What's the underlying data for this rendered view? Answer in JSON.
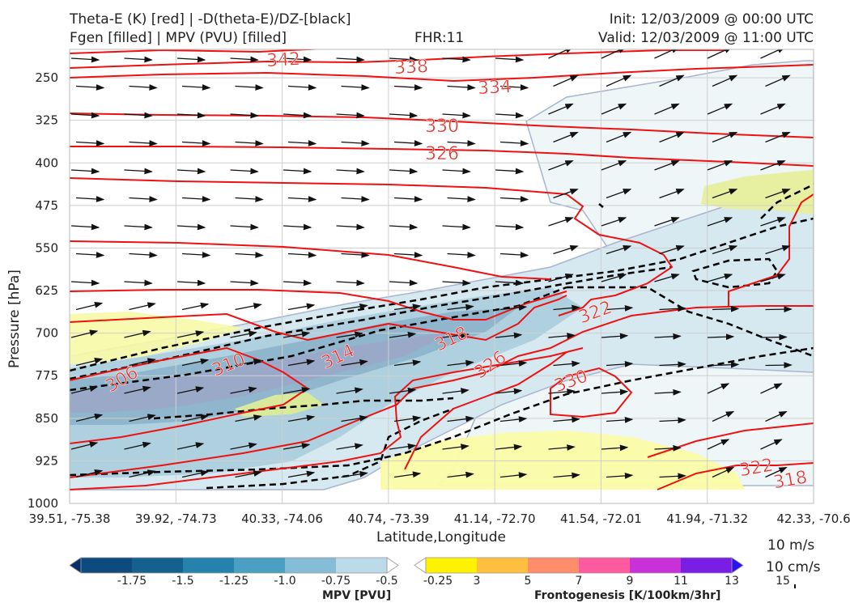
{
  "header": {
    "left_line1": "Theta-E (K) [red] | -D(theta-E)/DZ-[black]",
    "left_line2": "Fgen [filled] | MPV (PVU) [filled]",
    "fhr": "FHR:11",
    "init": "Init: 12/03/2009 @ 00:00 UTC",
    "valid": "Valid: 12/03/2009 @ 11:00 UTC"
  },
  "chart_data": {
    "type": "cross-section",
    "xlabel": "Latitude,Longitude",
    "ylabel": "Pressure [hPa]",
    "x_ticks": [
      "39.51, -75.38",
      "39.92, -74.73",
      "40.33, -74.06",
      "40.74, -73.39",
      "41.14, -72.70",
      "41.54, -72.01",
      "41.94, -71.32",
      "42.33, -70.6"
    ],
    "y_ticks": [
      250,
      325,
      400,
      475,
      550,
      625,
      700,
      775,
      850,
      925,
      1000
    ],
    "ylim": [
      1000,
      200
    ],
    "grid": true,
    "theta_e_contour_labels": [
      {
        "value": "342",
        "color": "#e8302a"
      },
      {
        "value": "338",
        "color": "#e8302a"
      },
      {
        "value": "334",
        "color": "#e8302a"
      },
      {
        "value": "330",
        "color": "#e8302a"
      },
      {
        "value": "326",
        "color": "#e8302a"
      },
      {
        "value": "322",
        "color": "#e8302a"
      },
      {
        "value": "318",
        "color": "#e8302a"
      },
      {
        "value": "314",
        "color": "#e8302a"
      },
      {
        "value": "310",
        "color": "#e8302a"
      },
      {
        "value": "306",
        "color": "#e8302a"
      },
      {
        "value": "326",
        "color": "#e8302a"
      },
      {
        "value": "330",
        "color": "#e8302a"
      },
      {
        "value": "322",
        "color": "#e8302a"
      },
      {
        "value": "318",
        "color": "#e8302a"
      }
    ],
    "mpv_colorbar": {
      "label": "MPV [PVU]",
      "ticks": [
        "-1.75",
        "-1.5",
        "-1.25",
        "-1.0",
        "-0.75",
        "-0.5",
        "-0.25"
      ],
      "colors": [
        "#08306b",
        "#0d4a7e",
        "#14618f",
        "#2482ad",
        "#4a9fc3",
        "#86bdd6",
        "#bcdbe8",
        "#ffffff"
      ]
    },
    "fgen_colorbar": {
      "label": "Frontogenesis [K/100km/3hr]",
      "ticks": [
        "3",
        "5",
        "7",
        "9",
        "11",
        "13",
        "15"
      ],
      "colors": [
        "#ffffff",
        "#fff200",
        "#ffc040",
        "#ff8c6a",
        "#ff5aa0",
        "#c830d8",
        "#7a1ee6",
        "#2c14f0"
      ]
    },
    "reference_vector": {
      "line1": "10 m/s",
      "line2": "10 cm/s"
    }
  }
}
